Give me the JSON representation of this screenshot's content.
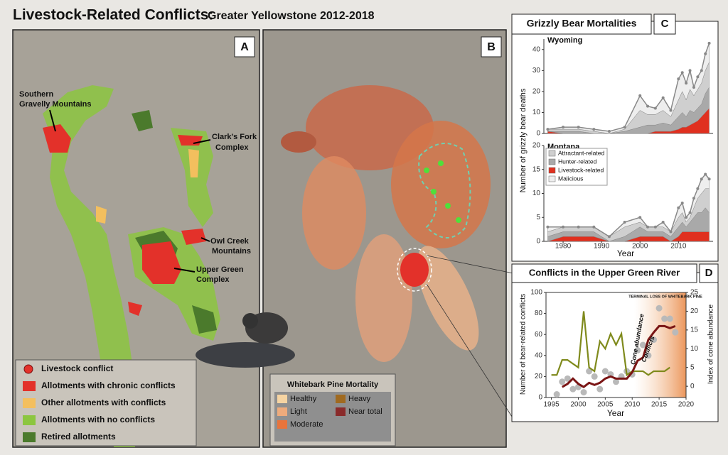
{
  "header": {
    "title": "Livestock-Related Conflicts:",
    "subtitle": "Greater Yellowstone 2012-2018"
  },
  "panels": {
    "a": "A",
    "b": "B",
    "c": "C",
    "d": "D"
  },
  "map_a": {
    "labels": [
      "Southern",
      "Gravelly Mountains",
      "Clark's Fork",
      "Complex",
      "Owl Creek",
      "Mountains",
      "Upper Green",
      "Complex"
    ],
    "legend": [
      {
        "label": "Livestock conflict",
        "color": "#e3312a"
      },
      {
        "label": "Allotments with chronic conflicts",
        "color": "#e3312a"
      },
      {
        "label": "Other allotments with conflicts",
        "color": "#f3bf5e"
      },
      {
        "label": "Allotments with no conflicts",
        "color": "#8cc63f"
      },
      {
        "label": "Retired allotments",
        "color": "#4b7a2c"
      }
    ]
  },
  "map_b": {
    "legend_title": "Whitebark Pine Mortality",
    "legend": [
      {
        "label": "Healthy",
        "color": "#f6d4a2"
      },
      {
        "label": "Light",
        "color": "#eeab7c"
      },
      {
        "label": "Moderate",
        "color": "#e8743c"
      },
      {
        "label": "Heavy",
        "color": "#a06a20"
      },
      {
        "label": "Near total",
        "color": "#8a2b2b"
      }
    ]
  },
  "chart_c": {
    "type": "area",
    "title": "Grizzly Bear Mortalities",
    "ylabel": "Number of grizzly bear deaths",
    "xlabel": "Year",
    "x": [
      1976,
      1980,
      1984,
      1988,
      1992,
      1996,
      2000,
      2002,
      2004,
      2006,
      2008,
      2010,
      2011,
      2012,
      2013,
      2014,
      2015,
      2016,
      2017,
      2018
    ],
    "xlim": [
      1975,
      2019
    ],
    "xticks": [
      1980,
      1990,
      2000,
      2010
    ],
    "legend": [
      {
        "name": "Livestock-related",
        "color": "#e0301f"
      },
      {
        "name": "Hunter-related",
        "color": "#a9a9a9"
      },
      {
        "name": "Attractant-related",
        "color": "#cfcfcf"
      },
      {
        "name": "Malicious",
        "color": "#eeeeee"
      }
    ],
    "panels": [
      {
        "name": "Wyoming",
        "ylim": [
          0,
          45
        ],
        "yticks": [
          0,
          10,
          20,
          30,
          40
        ],
        "stacks": [
          [
            1,
            0,
            0,
            0,
            0,
            0,
            0,
            0,
            1,
            1,
            1,
            2,
            3,
            3,
            4,
            5,
            6,
            8,
            10,
            12
          ],
          [
            0,
            1,
            1,
            0,
            0,
            1,
            3,
            4,
            3,
            4,
            3,
            6,
            7,
            5,
            7,
            5,
            6,
            6,
            9,
            10
          ],
          [
            1,
            1,
            1,
            1,
            0,
            1,
            8,
            5,
            5,
            6,
            4,
            8,
            10,
            8,
            10,
            8,
            9,
            10,
            11,
            12
          ],
          [
            0,
            1,
            1,
            1,
            1,
            1,
            7,
            4,
            3,
            6,
            3,
            10,
            9,
            8,
            9,
            4,
            6,
            6,
            8,
            9
          ]
        ]
      },
      {
        "name": "Montana",
        "ylim": [
          0,
          20
        ],
        "yticks": [
          0,
          5,
          10,
          15,
          20
        ],
        "stacks": [
          [
            0,
            1,
            1,
            1,
            0,
            0,
            1,
            1,
            1,
            1,
            0,
            1,
            2,
            2,
            2,
            2,
            2,
            2,
            2,
            2
          ],
          [
            1,
            1,
            1,
            1,
            0,
            1,
            2,
            1,
            1,
            1,
            1,
            2,
            2,
            1,
            2,
            3,
            4,
            4,
            5,
            4
          ],
          [
            1,
            1,
            1,
            1,
            1,
            2,
            1,
            1,
            1,
            1,
            1,
            2,
            2,
            1,
            1,
            2,
            3,
            4,
            4,
            5
          ],
          [
            1,
            0,
            0,
            0,
            0,
            1,
            1,
            0,
            0,
            1,
            0,
            2,
            2,
            1,
            1,
            2,
            2,
            3,
            3,
            2
          ]
        ]
      }
    ]
  },
  "chart_d": {
    "type": "line",
    "title": "Conflicts in the Upper Green River",
    "ylabel": "Number of bear-related conflicts",
    "y2label": "Index of cone abundance",
    "xlabel": "Year",
    "annotation": "TERMINAL LOSS OF WHITEBARK PINE",
    "xlim": [
      1994,
      2020
    ],
    "xticks": [
      1995,
      2000,
      2005,
      2010,
      2015,
      2020
    ],
    "ylim": [
      0,
      100
    ],
    "yticks": [
      0,
      20,
      40,
      60,
      80,
      100
    ],
    "y2lim": [
      -3,
      25
    ],
    "y2ticks": [
      0,
      5,
      10,
      15,
      20,
      25
    ],
    "series": [
      {
        "name": "Cone abundance",
        "color": "#7f8a1c",
        "axis": "y2",
        "x": [
          1995,
          1996,
          1997,
          1998,
          1999,
          2000,
          2001,
          2002,
          2003,
          2004,
          2005,
          2006,
          2007,
          2008,
          2009,
          2010,
          2011,
          2012,
          2013,
          2014,
          2015,
          2016,
          2017
        ],
        "values": [
          3,
          3,
          7,
          7,
          6,
          5,
          20,
          5,
          4,
          12,
          10,
          14,
          11,
          14,
          3,
          4,
          4,
          4,
          3,
          4,
          4,
          4,
          5
        ]
      },
      {
        "name": "Conflicts",
        "color": "#7a1515",
        "x": [
          1997,
          1998,
          1999,
          2000,
          2001,
          2002,
          2003,
          2004,
          2005,
          2006,
          2007,
          2008,
          2009,
          2010,
          2011,
          2012,
          2013,
          2014,
          2015,
          2016,
          2017,
          2018
        ],
        "values": [
          10,
          13,
          18,
          13,
          10,
          14,
          12,
          14,
          18,
          20,
          18,
          18,
          18,
          24,
          35,
          38,
          55,
          62,
          68,
          68,
          66,
          68
        ]
      }
    ],
    "points": {
      "color": "#b9b9b9",
      "x": [
        1996,
        1997,
        1998,
        1999,
        2000,
        2001,
        2002,
        2003,
        2004,
        2005,
        2006,
        2007,
        2008,
        2009,
        2010,
        2011,
        2012,
        2013,
        2014,
        2015,
        2016,
        2017,
        2018
      ],
      "values": [
        3,
        15,
        18,
        8,
        10,
        5,
        25,
        20,
        8,
        25,
        22,
        15,
        20,
        25,
        22,
        45,
        50,
        40,
        55,
        85,
        75,
        75,
        62
      ]
    }
  }
}
